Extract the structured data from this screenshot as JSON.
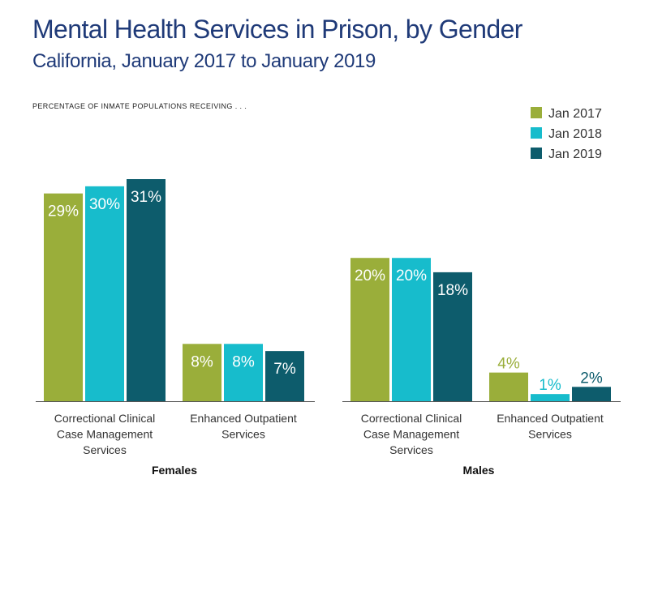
{
  "title": "Mental Health Services in Prison, by Gender",
  "subtitle": "California, January 2017 to January 2019",
  "note": "PERCENTAGE OF INMATE POPULATIONS RECEIVING . . .",
  "colors": {
    "jan2017": "#9aae3a",
    "jan2018": "#17bccc",
    "jan2019": "#0d5c6c",
    "title": "#1f3a78",
    "axis": "#555555"
  },
  "chart_data": [
    {
      "type": "bar",
      "group": "Females",
      "categories": [
        [
          "Correctional Clinical",
          "Case Management",
          "Services"
        ],
        [
          "Enhanced Outpatient",
          "Services"
        ]
      ],
      "series": [
        {
          "name": "Jan 2017",
          "values": [
            29,
            8
          ],
          "labels": [
            "29%",
            "8%"
          ]
        },
        {
          "name": "Jan 2018",
          "values": [
            30,
            8
          ],
          "labels": [
            "30%",
            "8%"
          ]
        },
        {
          "name": "Jan 2019",
          "values": [
            31,
            7
          ],
          "labels": [
            "31%",
            "7%"
          ]
        }
      ],
      "ylim": [
        0,
        31
      ],
      "legend": "top-right"
    },
    {
      "type": "bar",
      "group": "Males",
      "categories": [
        [
          "Correctional Clinical",
          "Case Management",
          "Services"
        ],
        [
          "Enhanced Outpatient",
          "Services"
        ]
      ],
      "series": [
        {
          "name": "Jan 2017",
          "values": [
            20,
            4
          ],
          "labels": [
            "20%",
            "4%"
          ]
        },
        {
          "name": "Jan 2018",
          "values": [
            20,
            1
          ],
          "labels": [
            "20%",
            "1%"
          ]
        },
        {
          "name": "Jan 2019",
          "values": [
            18,
            2
          ],
          "labels": [
            "18%",
            "2%"
          ]
        }
      ],
      "ylim": [
        0,
        31
      ],
      "legend": "top-right"
    }
  ]
}
